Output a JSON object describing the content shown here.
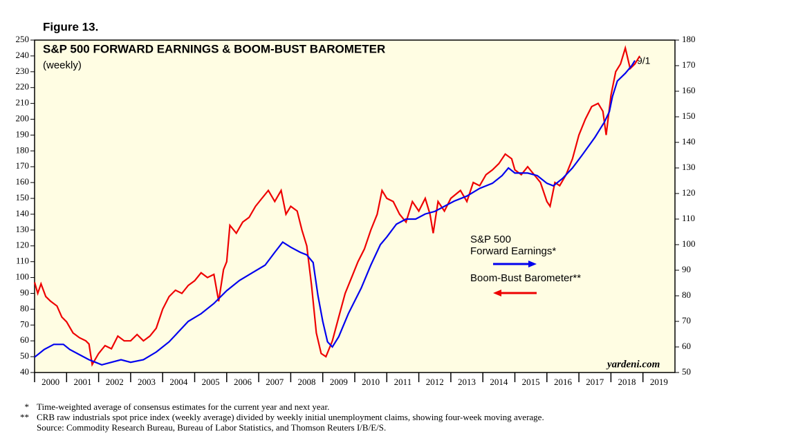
{
  "figure_label": "Figure 13.",
  "chart_data": {
    "type": "line",
    "title": "S&P 500 FORWARD EARNINGS & BOOM-BUST BAROMETER",
    "subtitle": "(weekly)",
    "xlim": [
      2000,
      2020
    ],
    "xticks": [
      2000,
      2001,
      2002,
      2003,
      2004,
      2005,
      2006,
      2007,
      2008,
      2009,
      2010,
      2011,
      2012,
      2013,
      2014,
      2015,
      2016,
      2017,
      2018,
      2019
    ],
    "ylim": [
      40,
      250
    ],
    "yticks": [
      40,
      50,
      60,
      70,
      80,
      90,
      100,
      110,
      120,
      130,
      140,
      150,
      160,
      170,
      180,
      190,
      200,
      210,
      220,
      230,
      240,
      250
    ],
    "y2lim": [
      50,
      180
    ],
    "y2ticks": [
      50,
      60,
      70,
      80,
      90,
      100,
      110,
      120,
      130,
      140,
      150,
      160,
      170,
      180
    ],
    "series": [
      {
        "name": "S&P 500\nForward Earnings*",
        "color": "#0000ee",
        "axis": "y2",
        "x": [
          2000.0,
          2000.3,
          2000.6,
          2000.9,
          2001.1,
          2001.4,
          2001.7,
          2001.9,
          2002.1,
          2002.4,
          2002.7,
          2003.0,
          2003.4,
          2003.8,
          2004.2,
          2004.5,
          2004.8,
          2005.2,
          2005.6,
          2006.0,
          2006.4,
          2006.8,
          2007.2,
          2007.5,
          2007.75,
          2008.0,
          2008.3,
          2008.5,
          2008.7,
          2008.85,
          2009.0,
          2009.15,
          2009.3,
          2009.5,
          2009.8,
          2010.2,
          2010.5,
          2010.8,
          2011.0,
          2011.3,
          2011.6,
          2011.9,
          2012.2,
          2012.5,
          2012.8,
          2013.1,
          2013.5,
          2013.9,
          2014.3,
          2014.6,
          2014.8,
          2015.0,
          2015.4,
          2015.7,
          2016.0,
          2016.2,
          2016.5,
          2016.8,
          2017.1,
          2017.5,
          2017.8,
          2017.95,
          2018.05,
          2018.2,
          2018.45,
          2018.65,
          2018.75
        ],
        "values": [
          56,
          59,
          61,
          61,
          59,
          57,
          55,
          54,
          53,
          54,
          55,
          54,
          55,
          58,
          62,
          66,
          70,
          73,
          77,
          82,
          86,
          89,
          92,
          97,
          101,
          99,
          97,
          96,
          93,
          80,
          70,
          62,
          60,
          64,
          73,
          83,
          92,
          100,
          103,
          108,
          110,
          110,
          112,
          113,
          115,
          117,
          119,
          122,
          124,
          127,
          130,
          128,
          128,
          127,
          124,
          123,
          126,
          130,
          135,
          142,
          148,
          152,
          158,
          164,
          167,
          170,
          172
        ]
      },
      {
        "name": "Boom-Bust Barometer**",
        "color": "#ee0000",
        "axis": "y",
        "x": [
          2000.0,
          2000.1,
          2000.2,
          2000.35,
          2000.5,
          2000.7,
          2000.85,
          2001.0,
          2001.2,
          2001.4,
          2001.6,
          2001.7,
          2001.8,
          2002.0,
          2002.2,
          2002.4,
          2002.6,
          2002.8,
          2003.0,
          2003.2,
          2003.4,
          2003.6,
          2003.8,
          2004.0,
          2004.2,
          2004.4,
          2004.6,
          2004.8,
          2005.0,
          2005.2,
          2005.4,
          2005.6,
          2005.75,
          2005.9,
          2006.0,
          2006.1,
          2006.3,
          2006.5,
          2006.7,
          2006.9,
          2007.1,
          2007.3,
          2007.5,
          2007.7,
          2007.85,
          2008.0,
          2008.2,
          2008.35,
          2008.5,
          2008.65,
          2008.8,
          2008.95,
          2009.1,
          2009.3,
          2009.5,
          2009.7,
          2009.9,
          2010.1,
          2010.3,
          2010.5,
          2010.7,
          2010.85,
          2011.0,
          2011.2,
          2011.4,
          2011.6,
          2011.8,
          2012.0,
          2012.2,
          2012.35,
          2012.45,
          2012.6,
          2012.8,
          2013.0,
          2013.3,
          2013.5,
          2013.7,
          2013.9,
          2014.1,
          2014.3,
          2014.5,
          2014.7,
          2014.9,
          2015.0,
          2015.2,
          2015.4,
          2015.6,
          2015.8,
          2016.0,
          2016.1,
          2016.25,
          2016.4,
          2016.6,
          2016.8,
          2017.0,
          2017.2,
          2017.4,
          2017.6,
          2017.75,
          2017.85,
          2018.0,
          2018.15,
          2018.3,
          2018.45,
          2018.6,
          2018.75,
          2018.9
        ],
        "values": [
          97,
          90,
          96,
          88,
          85,
          82,
          75,
          72,
          65,
          62,
          60,
          58,
          45,
          52,
          57,
          55,
          63,
          60,
          60,
          64,
          60,
          63,
          68,
          80,
          88,
          92,
          90,
          95,
          98,
          103,
          100,
          102,
          85,
          105,
          110,
          133,
          128,
          135,
          138,
          145,
          150,
          155,
          148,
          155,
          140,
          145,
          142,
          130,
          120,
          95,
          65,
          52,
          50,
          60,
          75,
          90,
          100,
          110,
          118,
          130,
          140,
          155,
          150,
          148,
          140,
          135,
          148,
          142,
          150,
          140,
          128,
          148,
          142,
          150,
          155,
          148,
          160,
          158,
          165,
          168,
          172,
          178,
          175,
          168,
          165,
          170,
          165,
          160,
          148,
          145,
          160,
          158,
          165,
          175,
          190,
          200,
          208,
          210,
          205,
          190,
          215,
          230,
          235,
          245,
          232,
          235,
          240
        ]
      }
    ],
    "annotations": [
      "9/1",
      "yardeni.com"
    ]
  },
  "notes": [
    {
      "marker": "*",
      "text": "Time-weighted average of consensus estimates for the current year and next year."
    },
    {
      "marker": "**",
      "text": "CRB raw industrials spot price index (weekly average) divided by weekly initial unemployment claims, showing four-week moving average."
    },
    {
      "marker": "",
      "text": "Source: Commodity Research Bureau, Bureau of Labor Statistics, and Thomson Reuters I/B/E/S."
    }
  ]
}
